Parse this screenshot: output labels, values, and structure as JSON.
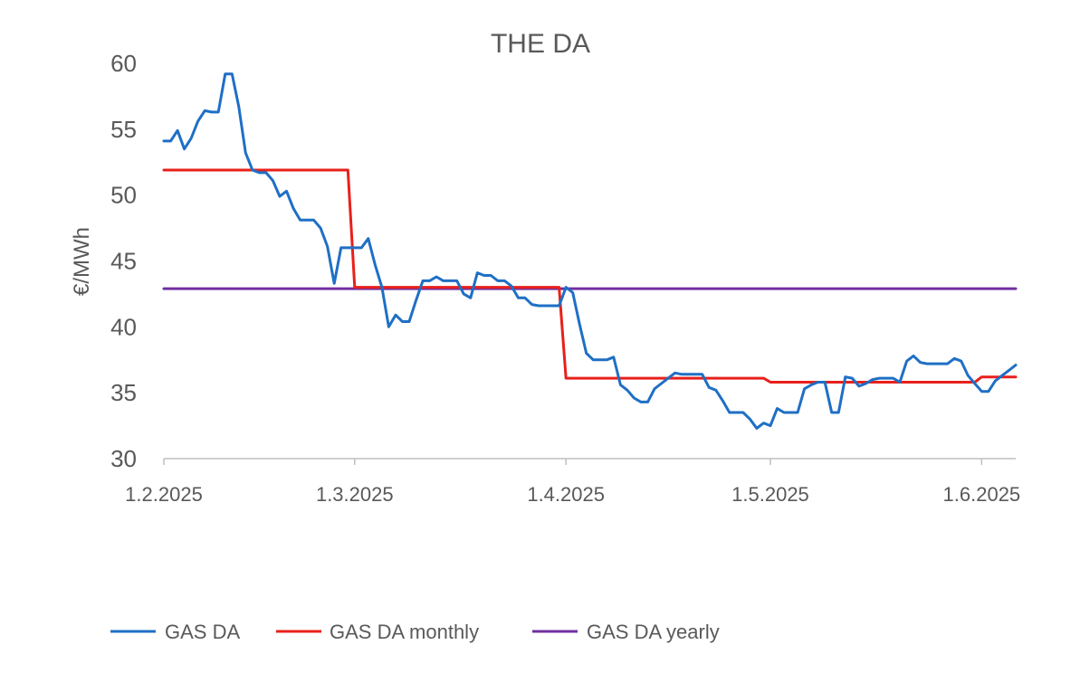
{
  "chart_data": {
    "type": "line",
    "title": "THE DA",
    "xlabel": "",
    "ylabel": "€/MWh",
    "ylim": [
      30,
      60
    ],
    "yticks": [
      30,
      35,
      40,
      45,
      50,
      55,
      60
    ],
    "xticks": [
      "1.2.2025",
      "1.3.2025",
      "1.4.2025",
      "1.5.2025",
      "1.6.2025"
    ],
    "xlim": [
      "2025-02-01",
      "2025-06-06"
    ],
    "grid": false,
    "legend_position": "bottom",
    "colors": {
      "GAS DA": "#1F6FC5",
      "GAS DA monthly": "#E8201B",
      "GAS DA yearly": "#7030A0",
      "axis": "#BFBFBF"
    },
    "series": [
      {
        "name": "GAS DA",
        "points": [
          [
            "2025-02-01",
            54.1
          ],
          [
            "2025-02-02",
            54.1
          ],
          [
            "2025-02-03",
            54.9
          ],
          [
            "2025-02-04",
            53.5
          ],
          [
            "2025-02-05",
            54.3
          ],
          [
            "2025-02-06",
            55.6
          ],
          [
            "2025-02-07",
            56.4
          ],
          [
            "2025-02-08",
            56.3
          ],
          [
            "2025-02-09",
            56.3
          ],
          [
            "2025-02-10",
            59.2
          ],
          [
            "2025-02-11",
            59.2
          ],
          [
            "2025-02-12",
            56.7
          ],
          [
            "2025-02-13",
            53.2
          ],
          [
            "2025-02-14",
            51.9
          ],
          [
            "2025-02-15",
            51.7
          ],
          [
            "2025-02-16",
            51.7
          ],
          [
            "2025-02-17",
            51.1
          ],
          [
            "2025-02-18",
            49.9
          ],
          [
            "2025-02-19",
            50.3
          ],
          [
            "2025-02-20",
            49.0
          ],
          [
            "2025-02-21",
            48.1
          ],
          [
            "2025-02-22",
            48.1
          ],
          [
            "2025-02-23",
            48.1
          ],
          [
            "2025-02-24",
            47.5
          ],
          [
            "2025-02-25",
            46.1
          ],
          [
            "2025-02-26",
            43.3
          ],
          [
            "2025-02-27",
            46.0
          ],
          [
            "2025-02-28",
            46.0
          ],
          [
            "2025-03-01",
            46.0
          ],
          [
            "2025-03-02",
            46.0
          ],
          [
            "2025-03-03",
            46.7
          ],
          [
            "2025-03-04",
            44.7
          ],
          [
            "2025-03-05",
            43.0
          ],
          [
            "2025-03-06",
            40.0
          ],
          [
            "2025-03-07",
            40.9
          ],
          [
            "2025-03-08",
            40.4
          ],
          [
            "2025-03-09",
            40.4
          ],
          [
            "2025-03-10",
            42.0
          ],
          [
            "2025-03-11",
            43.5
          ],
          [
            "2025-03-12",
            43.5
          ],
          [
            "2025-03-13",
            43.8
          ],
          [
            "2025-03-14",
            43.5
          ],
          [
            "2025-03-15",
            43.5
          ],
          [
            "2025-03-16",
            43.5
          ],
          [
            "2025-03-17",
            42.5
          ],
          [
            "2025-03-18",
            42.2
          ],
          [
            "2025-03-19",
            44.1
          ],
          [
            "2025-03-20",
            43.9
          ],
          [
            "2025-03-21",
            43.9
          ],
          [
            "2025-03-22",
            43.5
          ],
          [
            "2025-03-23",
            43.5
          ],
          [
            "2025-03-24",
            43.1
          ],
          [
            "2025-03-25",
            42.2
          ],
          [
            "2025-03-26",
            42.2
          ],
          [
            "2025-03-27",
            41.7
          ],
          [
            "2025-03-28",
            41.6
          ],
          [
            "2025-03-29",
            41.6
          ],
          [
            "2025-03-30",
            41.6
          ],
          [
            "2025-03-31",
            41.6
          ],
          [
            "2025-04-01",
            43.0
          ],
          [
            "2025-04-02",
            42.6
          ],
          [
            "2025-04-03",
            40.2
          ],
          [
            "2025-04-04",
            38.0
          ],
          [
            "2025-04-05",
            37.5
          ],
          [
            "2025-04-06",
            37.5
          ],
          [
            "2025-04-07",
            37.5
          ],
          [
            "2025-04-08",
            37.7
          ],
          [
            "2025-04-09",
            35.6
          ],
          [
            "2025-04-10",
            35.2
          ],
          [
            "2025-04-11",
            34.6
          ],
          [
            "2025-04-12",
            34.3
          ],
          [
            "2025-04-13",
            34.3
          ],
          [
            "2025-04-14",
            35.3
          ],
          [
            "2025-04-15",
            35.7
          ],
          [
            "2025-04-16",
            36.1
          ],
          [
            "2025-04-17",
            36.5
          ],
          [
            "2025-04-18",
            36.4
          ],
          [
            "2025-04-19",
            36.4
          ],
          [
            "2025-04-20",
            36.4
          ],
          [
            "2025-04-21",
            36.4
          ],
          [
            "2025-04-22",
            35.4
          ],
          [
            "2025-04-23",
            35.2
          ],
          [
            "2025-04-24",
            34.4
          ],
          [
            "2025-04-25",
            33.5
          ],
          [
            "2025-04-26",
            33.5
          ],
          [
            "2025-04-27",
            33.5
          ],
          [
            "2025-04-28",
            33.0
          ],
          [
            "2025-04-29",
            32.3
          ],
          [
            "2025-04-30",
            32.7
          ],
          [
            "2025-05-01",
            32.5
          ],
          [
            "2025-05-02",
            33.8
          ],
          [
            "2025-05-03",
            33.5
          ],
          [
            "2025-05-04",
            33.5
          ],
          [
            "2025-05-05",
            33.5
          ],
          [
            "2025-05-06",
            35.3
          ],
          [
            "2025-05-07",
            35.6
          ],
          [
            "2025-05-08",
            35.8
          ],
          [
            "2025-05-09",
            35.8
          ],
          [
            "2025-05-10",
            33.5
          ],
          [
            "2025-05-11",
            33.5
          ],
          [
            "2025-05-12",
            36.2
          ],
          [
            "2025-05-13",
            36.1
          ],
          [
            "2025-05-14",
            35.5
          ],
          [
            "2025-05-15",
            35.7
          ],
          [
            "2025-05-16",
            36.0
          ],
          [
            "2025-05-17",
            36.1
          ],
          [
            "2025-05-18",
            36.1
          ],
          [
            "2025-05-19",
            36.1
          ],
          [
            "2025-05-20",
            35.8
          ],
          [
            "2025-05-21",
            37.4
          ],
          [
            "2025-05-22",
            37.8
          ],
          [
            "2025-05-23",
            37.3
          ],
          [
            "2025-05-24",
            37.2
          ],
          [
            "2025-05-25",
            37.2
          ],
          [
            "2025-05-26",
            37.2
          ],
          [
            "2025-05-27",
            37.2
          ],
          [
            "2025-05-28",
            37.6
          ],
          [
            "2025-05-29",
            37.4
          ],
          [
            "2025-05-30",
            36.3
          ],
          [
            "2025-05-31",
            35.7
          ],
          [
            "2025-06-01",
            35.1
          ],
          [
            "2025-06-02",
            35.1
          ],
          [
            "2025-06-03",
            35.9
          ],
          [
            "2025-06-04",
            36.3
          ],
          [
            "2025-06-05",
            36.7
          ],
          [
            "2025-06-06",
            37.1
          ]
        ]
      },
      {
        "name": "GAS DA monthly",
        "points": [
          [
            "2025-02-01",
            51.9
          ],
          [
            "2025-02-28",
            51.9
          ],
          [
            "2025-03-01",
            43.0
          ],
          [
            "2025-03-31",
            43.0
          ],
          [
            "2025-04-01",
            36.1
          ],
          [
            "2025-04-30",
            36.1
          ],
          [
            "2025-05-01",
            35.8
          ],
          [
            "2025-05-31",
            35.8
          ],
          [
            "2025-06-01",
            36.2
          ],
          [
            "2025-06-06",
            36.2
          ]
        ]
      },
      {
        "name": "GAS DA yearly",
        "points": [
          [
            "2025-02-01",
            42.9
          ],
          [
            "2025-06-06",
            42.9
          ]
        ]
      }
    ]
  }
}
